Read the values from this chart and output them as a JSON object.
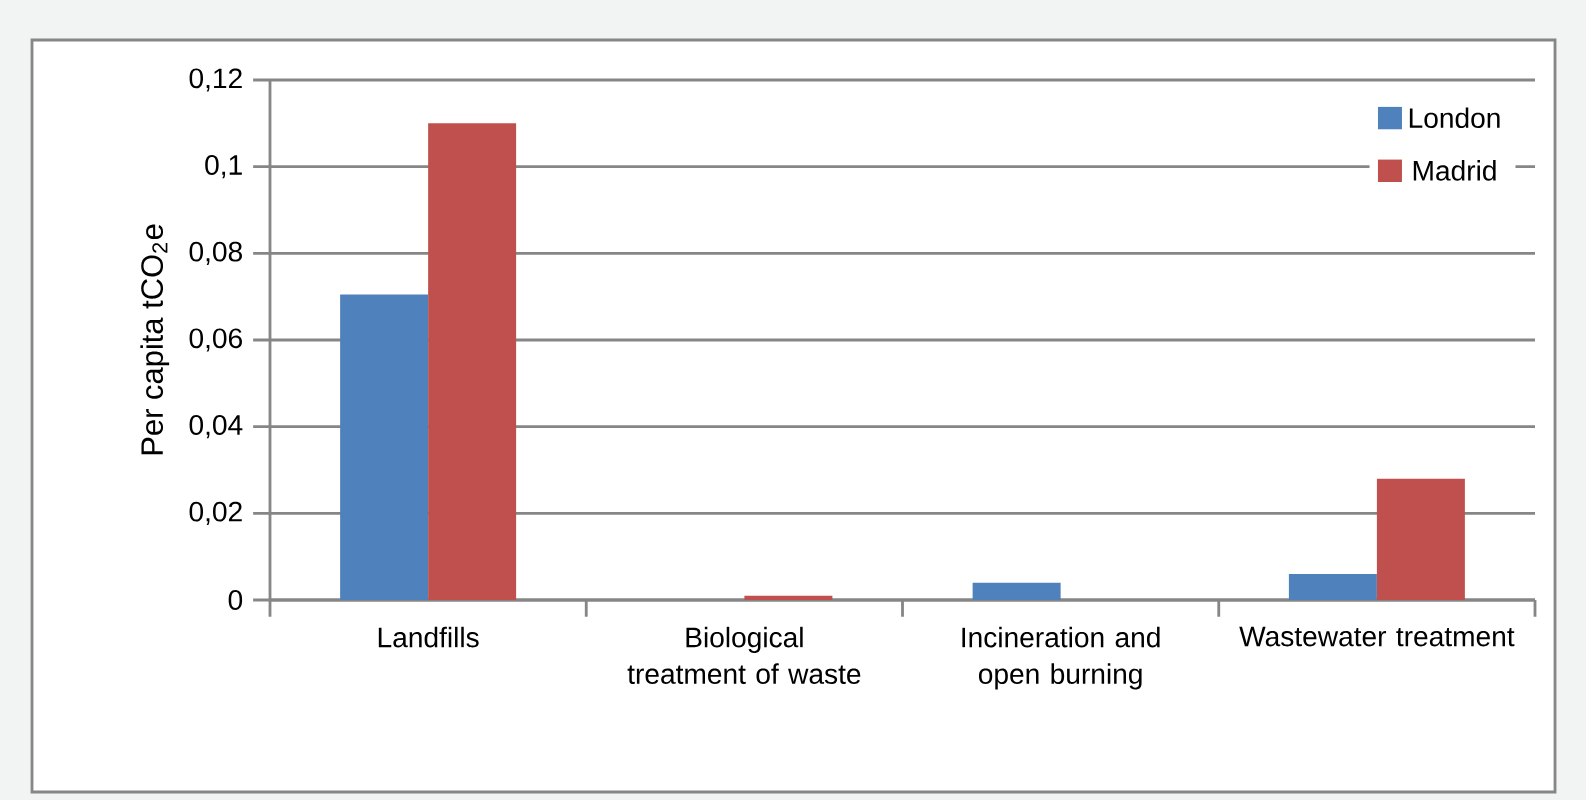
{
  "chart_data": {
    "type": "bar",
    "ylabel": "Per capita tCO$_{2}$e",
    "categories": [
      "Landfills",
      "Biological treatment of waste",
      "Incineration and open burning",
      "Wastewater treatment"
    ],
    "series": [
      {
        "name": "London",
        "color": "#4f81bd",
        "values": [
          0.0705,
          0,
          0.004,
          0.006
        ]
      },
      {
        "name": "Madrid",
        "color": "#c0504d",
        "values": [
          0.11,
          0.001,
          null,
          0.028
        ]
      }
    ],
    "ylim": [
      0,
      0.12
    ],
    "yticks": [
      0,
      {
        "value": 0.02,
        "label": "0,02"
      },
      {
        "value": 0.04,
        "label": "0,04"
      },
      {
        "value": 0.06,
        "label": "0,06"
      },
      {
        "value": 0.08,
        "label": "0,08"
      },
      {
        "value": 0.1,
        "label": "0,1"
      },
      {
        "value": 0.12,
        "label": "0,12"
      }
    ],
    "grid": "y",
    "legend": "top right"
  }
}
